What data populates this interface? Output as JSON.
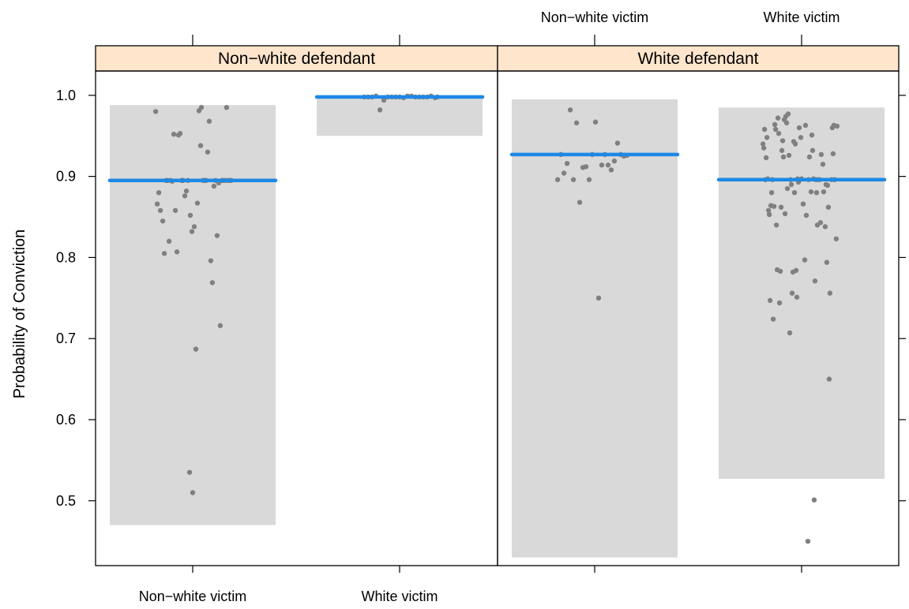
{
  "chart_data": {
    "type": "scatter",
    "ylabel": "Probability of Conviction",
    "ylim": [
      0.42,
      1.03
    ],
    "yticks": [
      0.5,
      0.6,
      0.7,
      0.8,
      0.9,
      1.0
    ],
    "ytick_labels": [
      "0.5",
      "0.6",
      "0.7",
      "0.8",
      "0.9",
      "1.0"
    ],
    "categories": [
      "Non−white victim",
      "White victim"
    ],
    "grid": false,
    "colors": {
      "strip": "#FFE5CC",
      "band": "#D9D9D9",
      "point": "#808080",
      "line": "#1E88E5"
    },
    "panels": [
      {
        "strip": "Non−white defendant",
        "groups": [
          {
            "category": "Non−white victim",
            "band": [
              0.47,
              0.988
            ],
            "line": 0.895,
            "points": [
              [
                -0.47,
                0.98
              ],
              [
                -0.45,
                0.866
              ],
              [
                -0.43,
                0.88
              ],
              [
                -0.41,
                0.858
              ],
              [
                -0.38,
                0.845
              ],
              [
                -0.36,
                0.805
              ],
              [
                -0.34,
                0.895
              ],
              [
                -0.32,
                0.895
              ],
              [
                -0.3,
                0.82
              ],
              [
                -0.28,
                0.895
              ],
              [
                -0.26,
                0.894
              ],
              [
                -0.24,
                0.952
              ],
              [
                -0.22,
                0.858
              ],
              [
                -0.2,
                0.807
              ],
              [
                -0.18,
                0.951
              ],
              [
                -0.16,
                0.953
              ],
              [
                -0.14,
                0.895
              ],
              [
                -0.12,
                0.895
              ],
              [
                -0.1,
                0.876
              ],
              [
                -0.08,
                0.882
              ],
              [
                -0.06,
                0.895
              ],
              [
                -0.04,
                0.535
              ],
              [
                -0.03,
                0.852
              ],
              [
                -0.01,
                0.832
              ],
              [
                0.0,
                0.51
              ],
              [
                0.02,
                0.838
              ],
              [
                0.04,
                0.687
              ],
              [
                0.06,
                0.867
              ],
              [
                0.08,
                0.981
              ],
              [
                0.1,
                0.938
              ],
              [
                0.11,
                0.985
              ],
              [
                0.13,
                0.895
              ],
              [
                0.15,
                0.895
              ],
              [
                0.17,
                0.895
              ],
              [
                0.19,
                0.93
              ],
              [
                0.21,
                0.968
              ],
              [
                0.23,
                0.796
              ],
              [
                0.25,
                0.769
              ],
              [
                0.27,
                0.888
              ],
              [
                0.29,
                0.895
              ],
              [
                0.31,
                0.827
              ],
              [
                0.33,
                0.892
              ],
              [
                0.35,
                0.716
              ],
              [
                0.37,
                0.895
              ],
              [
                0.39,
                0.895
              ],
              [
                0.41,
                0.895
              ],
              [
                0.43,
                0.985
              ],
              [
                0.45,
                0.895
              ],
              [
                0.47,
                0.895
              ],
              [
                0.49,
                0.895
              ]
            ]
          },
          {
            "category": "White victim",
            "band": [
              0.95,
              0.998
            ],
            "line": 0.998,
            "points": [
              [
                -0.45,
                0.998
              ],
              [
                -0.4,
                0.998
              ],
              [
                -0.35,
                0.998
              ],
              [
                -0.3,
                0.999
              ],
              [
                -0.25,
                0.982
              ],
              [
                -0.2,
                0.994
              ],
              [
                -0.15,
                0.998
              ],
              [
                -0.1,
                0.998
              ],
              [
                -0.05,
                0.998
              ],
              [
                0.0,
                0.998
              ],
              [
                0.05,
                0.997
              ],
              [
                0.1,
                0.999
              ],
              [
                0.15,
                0.999
              ],
              [
                0.2,
                0.998
              ],
              [
                0.25,
                0.998
              ],
              [
                0.3,
                0.998
              ],
              [
                0.35,
                0.998
              ],
              [
                0.4,
                0.999
              ],
              [
                0.45,
                0.997
              ],
              [
                0.48,
                0.998
              ]
            ]
          }
        ]
      },
      {
        "strip": "White defendant",
        "groups": [
          {
            "category": "Non−white victim",
            "band": [
              0.43,
              0.995
            ],
            "line": 0.927,
            "points": [
              [
                -0.47,
                0.896
              ],
              [
                -0.43,
                0.927
              ],
              [
                -0.39,
                0.904
              ],
              [
                -0.35,
                0.916
              ],
              [
                -0.31,
                0.982
              ],
              [
                -0.27,
                0.896
              ],
              [
                -0.23,
                0.966
              ],
              [
                -0.19,
                0.868
              ],
              [
                -0.15,
                0.911
              ],
              [
                -0.11,
                0.912
              ],
              [
                -0.07,
                0.896
              ],
              [
                -0.03,
                0.927
              ],
              [
                0.01,
                0.967
              ],
              [
                0.05,
                0.75
              ],
              [
                0.09,
                0.914
              ],
              [
                0.13,
                0.927
              ],
              [
                0.17,
                0.914
              ],
              [
                0.21,
                0.908
              ],
              [
                0.25,
                0.919
              ],
              [
                0.29,
                0.941
              ],
              [
                0.33,
                0.927
              ],
              [
                0.37,
                0.925
              ],
              [
                0.41,
                0.926
              ]
            ]
          },
          {
            "category": "White victim",
            "band": [
              0.527,
              0.985
            ],
            "line": 0.896,
            "points": [
              [
                -0.49,
                0.94
              ],
              [
                -0.48,
                0.935
              ],
              [
                -0.47,
                0.958
              ],
              [
                -0.46,
                0.896
              ],
              [
                -0.45,
                0.923
              ],
              [
                -0.44,
                0.948
              ],
              [
                -0.43,
                0.897
              ],
              [
                -0.42,
                0.858
              ],
              [
                -0.41,
                0.853
              ],
              [
                -0.4,
                0.747
              ],
              [
                -0.39,
                0.864
              ],
              [
                -0.38,
                0.88
              ],
              [
                -0.37,
                0.896
              ],
              [
                -0.36,
                0.724
              ],
              [
                -0.35,
                0.863
              ],
              [
                -0.34,
                0.964
              ],
              [
                -0.33,
                0.958
              ],
              [
                -0.32,
                0.84
              ],
              [
                -0.31,
                0.785
              ],
              [
                -0.3,
                0.972
              ],
              [
                -0.29,
                0.953
              ],
              [
                -0.28,
                0.744
              ],
              [
                -0.27,
                0.783
              ],
              [
                -0.26,
                0.862
              ],
              [
                -0.25,
                0.932
              ],
              [
                -0.24,
                0.944
              ],
              [
                -0.23,
                0.924
              ],
              [
                -0.22,
                0.97
              ],
              [
                -0.21,
                0.854
              ],
              [
                -0.2,
                0.974
              ],
              [
                -0.19,
                0.966
              ],
              [
                -0.18,
                0.885
              ],
              [
                -0.17,
                0.977
              ],
              [
                -0.16,
                0.926
              ],
              [
                -0.15,
                0.707
              ],
              [
                -0.14,
                0.896
              ],
              [
                -0.13,
                0.89
              ],
              [
                -0.12,
                0.756
              ],
              [
                -0.11,
                0.782
              ],
              [
                -0.1,
                0.943
              ],
              [
                -0.09,
                0.88
              ],
              [
                -0.08,
                0.94
              ],
              [
                -0.07,
                0.784
              ],
              [
                -0.06,
                0.751
              ],
              [
                -0.05,
                0.897
              ],
              [
                -0.04,
                0.893
              ],
              [
                -0.03,
                0.96
              ],
              [
                -0.02,
                0.896
              ],
              [
                -0.01,
                0.948
              ],
              [
                0.0,
                0.897
              ],
              [
                0.02,
                0.866
              ],
              [
                0.04,
                0.797
              ],
              [
                0.05,
                0.963
              ],
              [
                0.06,
                0.852
              ],
              [
                0.08,
                0.45
              ],
              [
                0.09,
                0.896
              ],
              [
                0.1,
                0.924
              ],
              [
                0.12,
                0.881
              ],
              [
                0.13,
                0.951
              ],
              [
                0.14,
                0.932
              ],
              [
                0.15,
                0.897
              ],
              [
                0.16,
                0.501
              ],
              [
                0.17,
                0.771
              ],
              [
                0.18,
                0.896
              ],
              [
                0.19,
                0.88
              ],
              [
                0.2,
                0.84
              ],
              [
                0.21,
                0.896
              ],
              [
                0.23,
                0.896
              ],
              [
                0.24,
                0.843
              ],
              [
                0.25,
                0.927
              ],
              [
                0.27,
                0.915
              ],
              [
                0.28,
                0.881
              ],
              [
                0.3,
                0.838
              ],
              [
                0.31,
                0.89
              ],
              [
                0.32,
                0.794
              ],
              [
                0.33,
                0.889
              ],
              [
                0.34,
                0.862
              ],
              [
                0.35,
                0.65
              ],
              [
                0.36,
                0.756
              ],
              [
                0.38,
                0.896
              ],
              [
                0.39,
                0.96
              ],
              [
                0.4,
                0.928
              ],
              [
                0.41,
                0.963
              ],
              [
                0.42,
                0.896
              ],
              [
                0.44,
                0.823
              ],
              [
                0.45,
                0.962
              ]
            ]
          }
        ]
      }
    ]
  }
}
